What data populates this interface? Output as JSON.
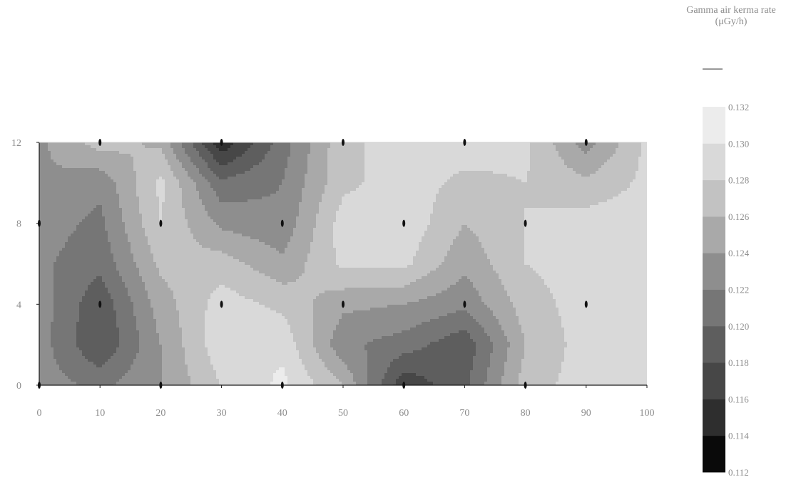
{
  "chart_data": {
    "type": "heatmap",
    "subtype": "contour",
    "colorbar_title": "Gamma air kerma rate",
    "colorbar_unit": "(μGy/h)",
    "x_ticks": [
      "0",
      "10",
      "20",
      "30",
      "40",
      "50",
      "60",
      "70",
      "80",
      "90",
      "100"
    ],
    "y_ticks": [
      "0",
      "4",
      "8",
      "12"
    ],
    "xlim": [
      0,
      100
    ],
    "ylim": [
      0,
      12
    ],
    "color_levels": [
      "0.112",
      "0.114",
      "0.116",
      "0.118",
      "0.120",
      "0.122",
      "0.124",
      "0.126",
      "0.128",
      "0.130",
      "0.132"
    ],
    "colors": [
      "#0a0a0a",
      "#2e2e2e",
      "#474747",
      "#5e5e5e",
      "#767676",
      "#8e8e8e",
      "#a9a9a9",
      "#c2c2c2",
      "#d9d9d9",
      "#ececec"
    ],
    "measurement_points": [
      {
        "x": 0,
        "y": 0
      },
      {
        "x": 20,
        "y": 0
      },
      {
        "x": 40,
        "y": 0
      },
      {
        "x": 60,
        "y": 0
      },
      {
        "x": 80,
        "y": 0
      },
      {
        "x": 10,
        "y": 4
      },
      {
        "x": 30,
        "y": 4
      },
      {
        "x": 50,
        "y": 4
      },
      {
        "x": 70,
        "y": 4
      },
      {
        "x": 90,
        "y": 4
      },
      {
        "x": 0,
        "y": 8
      },
      {
        "x": 20,
        "y": 8
      },
      {
        "x": 40,
        "y": 8
      },
      {
        "x": 60,
        "y": 8
      },
      {
        "x": 80,
        "y": 8
      },
      {
        "x": 10,
        "y": 12
      },
      {
        "x": 30,
        "y": 12
      },
      {
        "x": 50,
        "y": 12
      },
      {
        "x": 70,
        "y": 12
      },
      {
        "x": 90,
        "y": 12
      }
    ],
    "field_grid_x": [
      0,
      10,
      20,
      30,
      40,
      50,
      60,
      70,
      80,
      90,
      100
    ],
    "field_grid_y": [
      0,
      2,
      4,
      6,
      8,
      10,
      12
    ],
    "field_values": [
      [
        0.123,
        0.1215,
        0.124,
        0.128,
        0.1305,
        0.126,
        0.1165,
        0.1195,
        0.127,
        0.129,
        0.129
      ],
      [
        0.123,
        0.118,
        0.124,
        0.1295,
        0.1295,
        0.1225,
        0.121,
        0.1185,
        0.126,
        0.129,
        0.129
      ],
      [
        0.123,
        0.1185,
        0.125,
        0.129,
        0.1275,
        0.1245,
        0.124,
        0.1225,
        0.127,
        0.129,
        0.129
      ],
      [
        0.1225,
        0.1205,
        0.1265,
        0.127,
        0.1245,
        0.1285,
        0.1285,
        0.1245,
        0.128,
        0.129,
        0.129
      ],
      [
        0.123,
        0.1215,
        0.128,
        0.1235,
        0.1225,
        0.129,
        0.1295,
        0.126,
        0.128,
        0.129,
        0.129
      ],
      [
        0.124,
        0.1225,
        0.1285,
        0.1205,
        0.122,
        0.1275,
        0.129,
        0.1275,
        0.128,
        0.1265,
        0.1285
      ],
      [
        0.1235,
        0.127,
        0.1255,
        0.1145,
        0.121,
        0.1275,
        0.129,
        0.129,
        0.1285,
        0.123,
        0.1285
      ]
    ]
  }
}
